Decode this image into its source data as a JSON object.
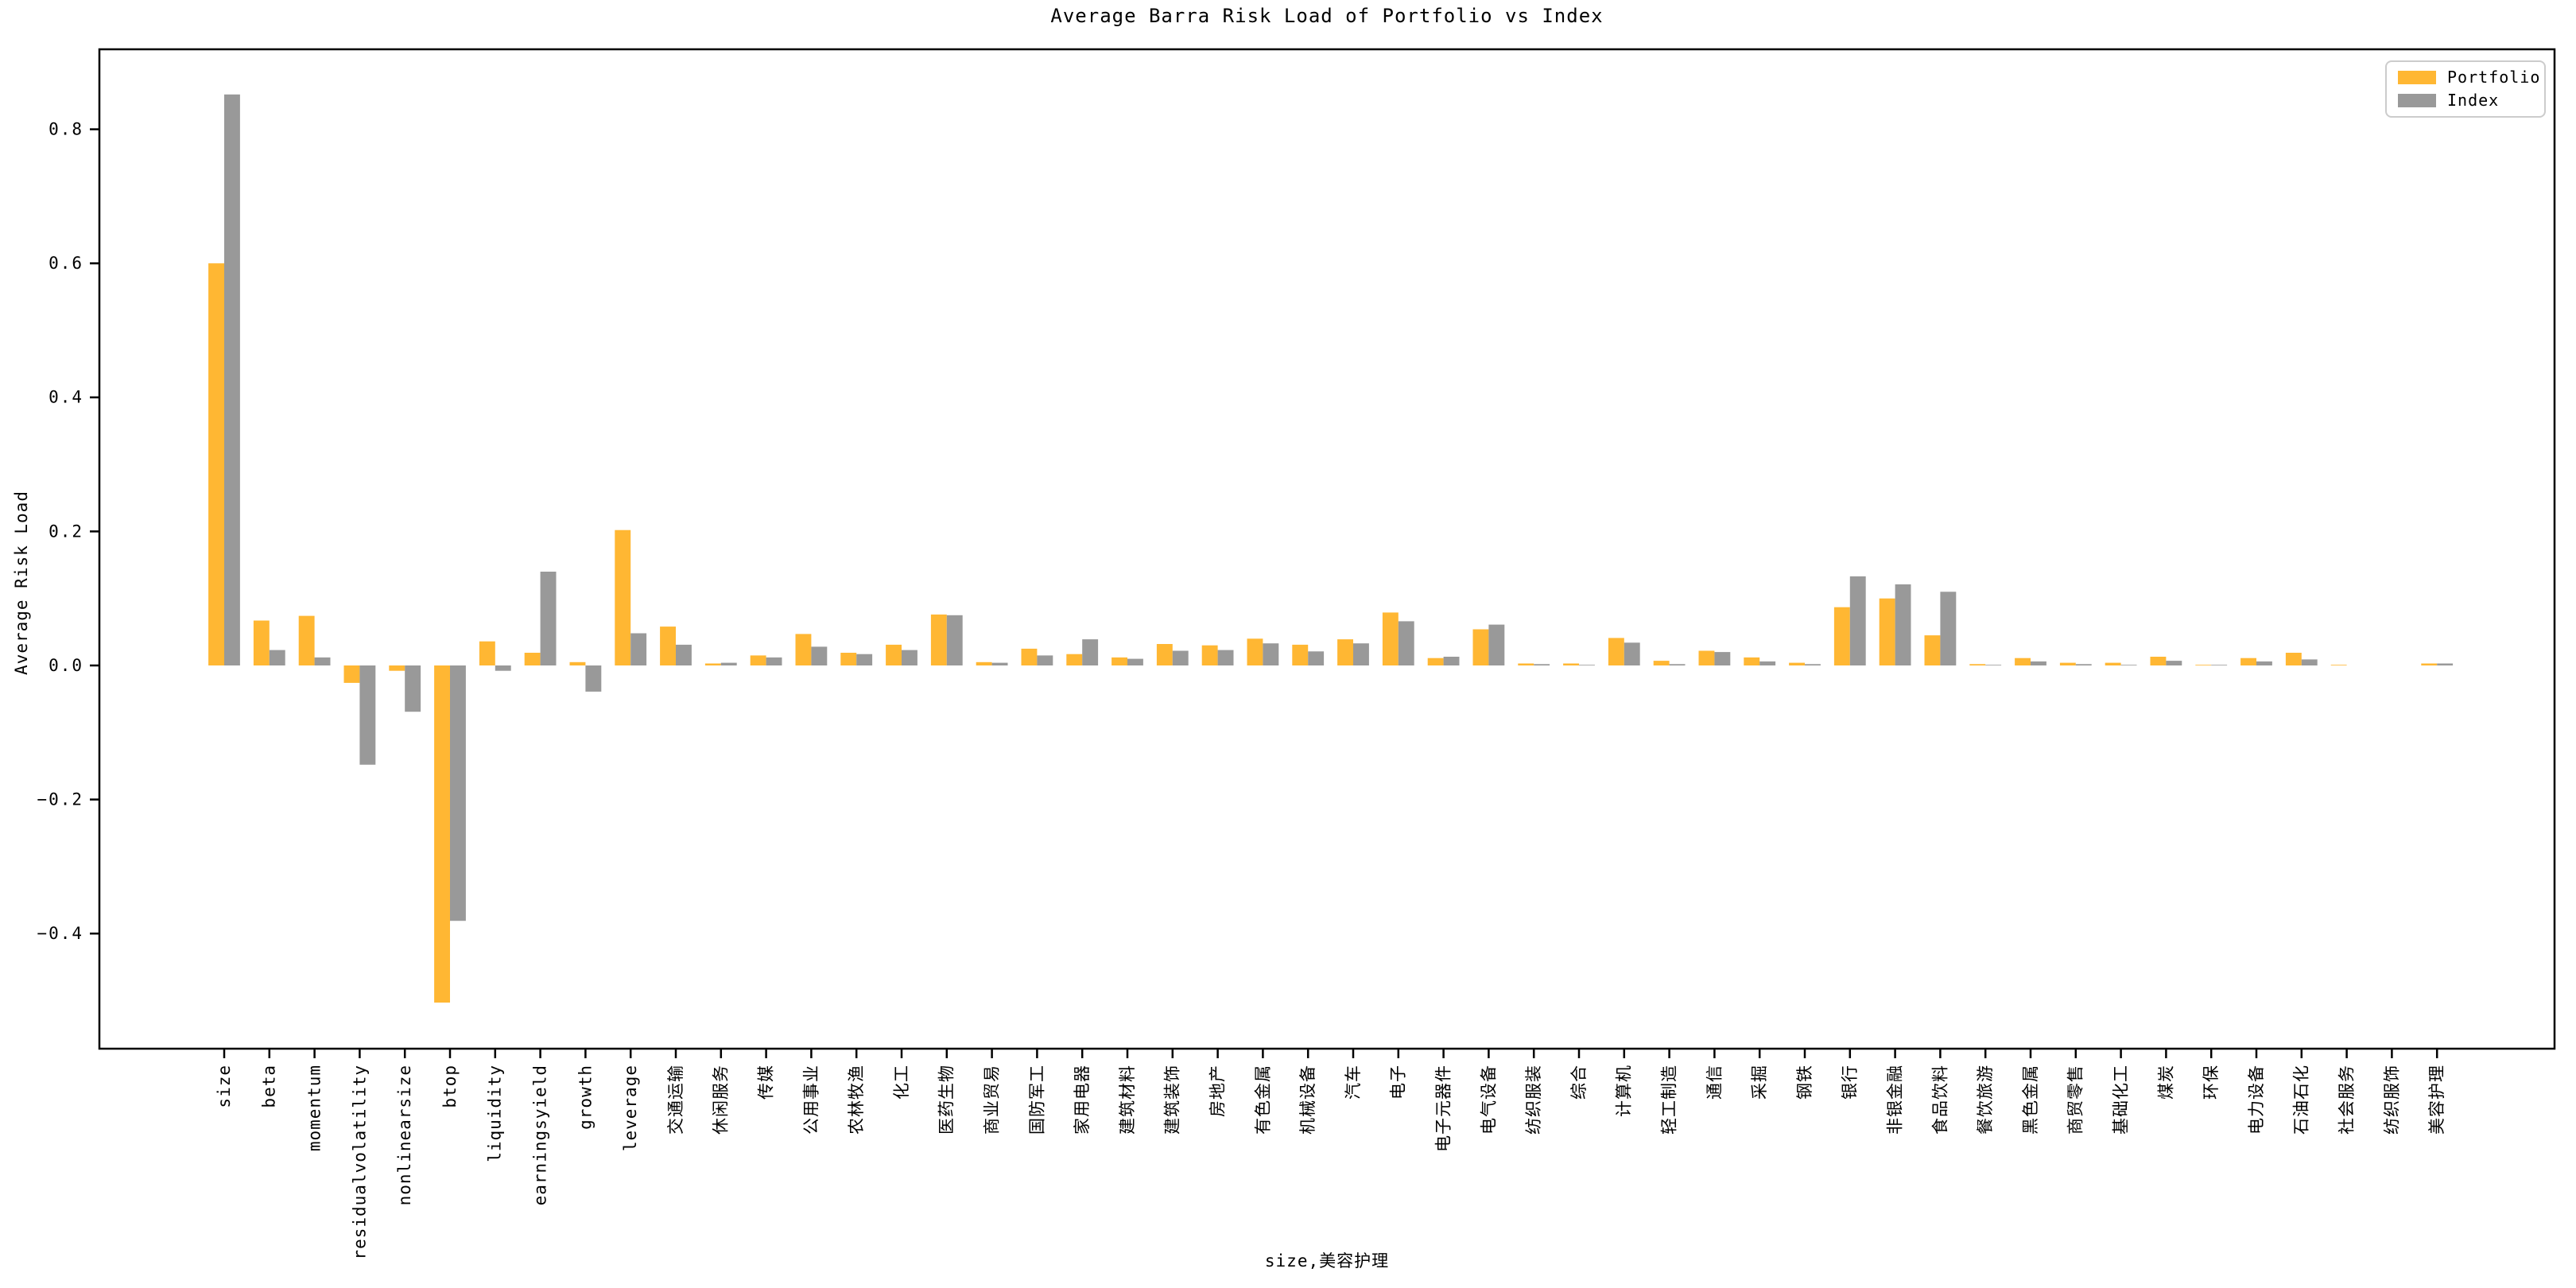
{
  "chart_data": {
    "type": "bar",
    "title": "Average Barra Risk Load of Portfolio vs Index",
    "xlabel": "size,美容护理",
    "ylabel": "Average Risk Load",
    "grid": false,
    "background": "#ffffff",
    "frame_color": "#000000",
    "legend": {
      "position": "upper right",
      "border_color": "#cccccc",
      "entries": [
        {
          "label": "Portfolio",
          "color": "#FFB733"
        },
        {
          "label": "Index",
          "color": "#999999"
        }
      ]
    },
    "yticks": [
      0.8,
      0.6,
      0.4,
      0.2,
      0.0,
      -0.2,
      -0.4
    ],
    "ytick_labels": [
      "0.8",
      "0.6",
      "0.4",
      "0.2",
      "0.0",
      "−0.2",
      "−0.4"
    ],
    "ylim": [
      -0.572,
      0.919
    ],
    "categories": [
      "size",
      "beta",
      "momentum",
      "residualvolatility",
      "nonlinearsize",
      "btop",
      "liquidity",
      "earningsyield",
      "growth",
      "leverage",
      "交通运输",
      "休闲服务",
      "传媒",
      "公用事业",
      "农林牧渔",
      "化工",
      "医药生物",
      "商业贸易",
      "国防军工",
      "家用电器",
      "建筑材料",
      "建筑装饰",
      "房地产",
      "有色金属",
      "机械设备",
      "汽车",
      "电子",
      "电子元器件",
      "电气设备",
      "纺织服装",
      "综合",
      "计算机",
      "轻工制造",
      "通信",
      "采掘",
      "钢铁",
      "银行",
      "非银金融",
      "食品饮料",
      "餐饮旅游",
      "黑色金属",
      "商贸零售",
      "基础化工",
      "煤炭",
      "环保",
      "电力设备",
      "石油石化",
      "社会服务",
      "纺织服饰",
      "美容护理"
    ],
    "series": [
      {
        "name": "Portfolio",
        "color": "#FFB733",
        "values": [
          0.6,
          0.067,
          0.074,
          -0.026,
          -0.008,
          -0.503,
          0.036,
          0.019,
          0.005,
          0.202,
          0.058,
          0.003,
          0.015,
          0.047,
          0.019,
          0.031,
          0.076,
          0.005,
          0.025,
          0.017,
          0.012,
          0.032,
          0.03,
          0.04,
          0.031,
          0.039,
          0.079,
          0.011,
          0.054,
          0.003,
          0.003,
          0.041,
          0.007,
          0.022,
          0.012,
          0.004,
          0.087,
          0.1,
          0.045,
          0.002,
          0.011,
          0.004,
          0.004,
          0.013,
          0.001,
          0.011,
          0.019,
          0.001,
          0.0,
          0.003
        ]
      },
      {
        "name": "Index",
        "color": "#999999",
        "values": [
          0.852,
          0.023,
          0.012,
          -0.148,
          -0.069,
          -0.381,
          -0.008,
          0.14,
          -0.039,
          0.048,
          0.031,
          0.004,
          0.012,
          0.028,
          0.017,
          0.023,
          0.075,
          0.004,
          0.015,
          0.039,
          0.01,
          0.022,
          0.023,
          0.033,
          0.021,
          0.033,
          0.066,
          0.013,
          0.061,
          0.002,
          0.001,
          0.034,
          0.002,
          0.02,
          0.006,
          0.002,
          0.133,
          0.121,
          0.11,
          0.001,
          0.006,
          0.002,
          0.001,
          0.007,
          0.001,
          0.006,
          0.009,
          0.0,
          0.0,
          0.003
        ]
      }
    ]
  }
}
